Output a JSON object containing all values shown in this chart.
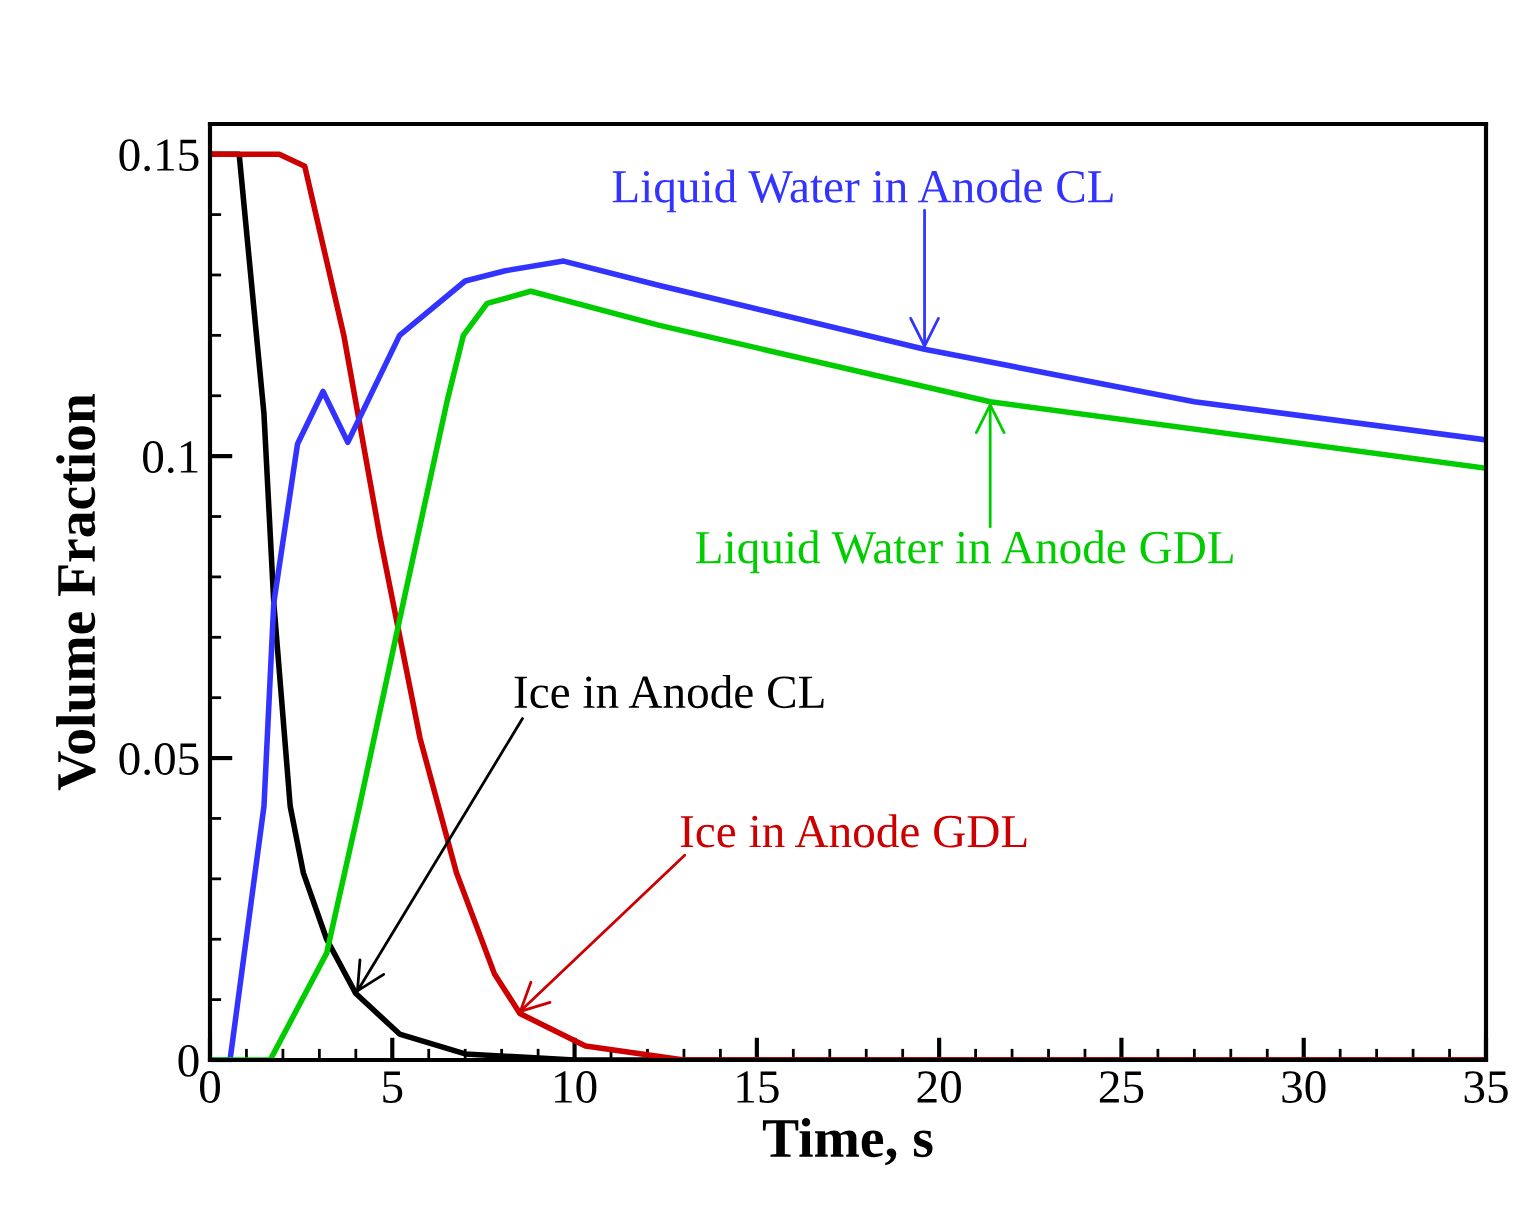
{
  "chart_data": {
    "type": "line",
    "xlabel": "Time, s",
    "ylabel": "Volume Fraction",
    "xlim": [
      0,
      35
    ],
    "ylim": [
      0,
      0.155
    ],
    "xticks": [
      0,
      5,
      10,
      15,
      20,
      25,
      30,
      35
    ],
    "yticks": [
      0,
      0.05,
      {
        "value": 0.1,
        "label": "0.1"
      },
      0.15
    ],
    "grid": false,
    "line_style": "solid",
    "marker": "none",
    "series": [
      {
        "color": "#000000",
        "x": [
          0,
          0.8,
          1.48,
          1.75,
          2.2,
          2.56,
          3.2,
          4.0,
          5.2,
          7,
          10,
          35
        ],
        "values": [
          0.15,
          0.15,
          0.107,
          0.0757,
          0.042,
          0.031,
          0.02,
          0.011,
          0.0043,
          0.001,
          0,
          0
        ]
      },
      {
        "color": "#cc0000",
        "x": [
          0,
          1.9,
          2.6,
          3.67,
          4.66,
          5.76,
          6.76,
          7.8,
          8.5,
          10.3,
          13,
          35
        ],
        "values": [
          0.15,
          0.15,
          0.148,
          0.12,
          0.0867,
          0.0533,
          0.031,
          0.0143,
          0.0077,
          0.0023,
          0,
          0
        ]
      },
      {
        "color": "#3333ff",
        "x": [
          0,
          0.55,
          1.48,
          1.75,
          2.4,
          3.1,
          3.78,
          5.2,
          7.0,
          8.1,
          9.7,
          12.3,
          19.6,
          27,
          35
        ],
        "values": [
          0,
          0,
          0.042,
          0.0757,
          0.102,
          0.1107,
          0.1023,
          0.12,
          0.129,
          0.1307,
          0.1323,
          0.1283,
          0.1177,
          0.109,
          0.1027
        ]
      },
      {
        "color": "#00cc00",
        "x": [
          0,
          1.65,
          3.2,
          4.1,
          5.3,
          6.5,
          6.95,
          7.6,
          8.8,
          12.3,
          21.4,
          35
        ],
        "values": [
          0,
          0,
          0.0177,
          0.042,
          0.0757,
          0.109,
          0.12,
          0.1253,
          0.1273,
          0.1217,
          0.109,
          0.098
        ]
      }
    ],
    "annotations": [
      {
        "text": "Liquid Water in Anode CL",
        "x": 19.6,
        "y": 0.1177
      },
      {
        "text": "Liquid Water in Anode GDL",
        "x": 21.4,
        "y": 0.109
      },
      {
        "text": "Ice in Anode CL",
        "x": 4.0,
        "y": 0.011
      },
      {
        "text": "Ice in Anode GDL",
        "x": 8.45,
        "y": 0.0077
      }
    ]
  }
}
